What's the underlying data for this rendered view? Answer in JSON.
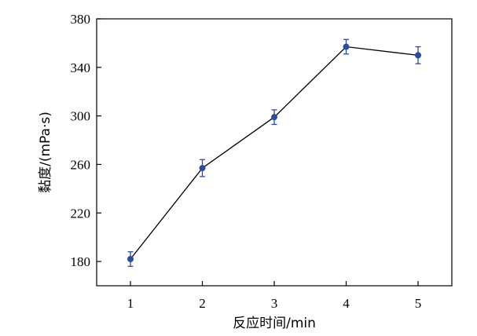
{
  "chart_data": {
    "type": "line",
    "xlabel": "反应时间/min",
    "ylabel": "黏度/(mPa·s)",
    "x": [
      1,
      2,
      3,
      4,
      5
    ],
    "xticks": [
      "1",
      "2",
      "3",
      "4",
      "5"
    ],
    "xlim": [
      0.53,
      5.47
    ],
    "ylim": [
      160,
      380
    ],
    "yticks": [
      "180",
      "220",
      "260",
      "300",
      "340",
      "380"
    ],
    "series": [
      {
        "values": [
          182,
          257,
          299,
          357,
          350
        ],
        "error": [
          6,
          7,
          6,
          6,
          7
        ],
        "color": "#2a4ba0"
      }
    ],
    "grid": false
  }
}
